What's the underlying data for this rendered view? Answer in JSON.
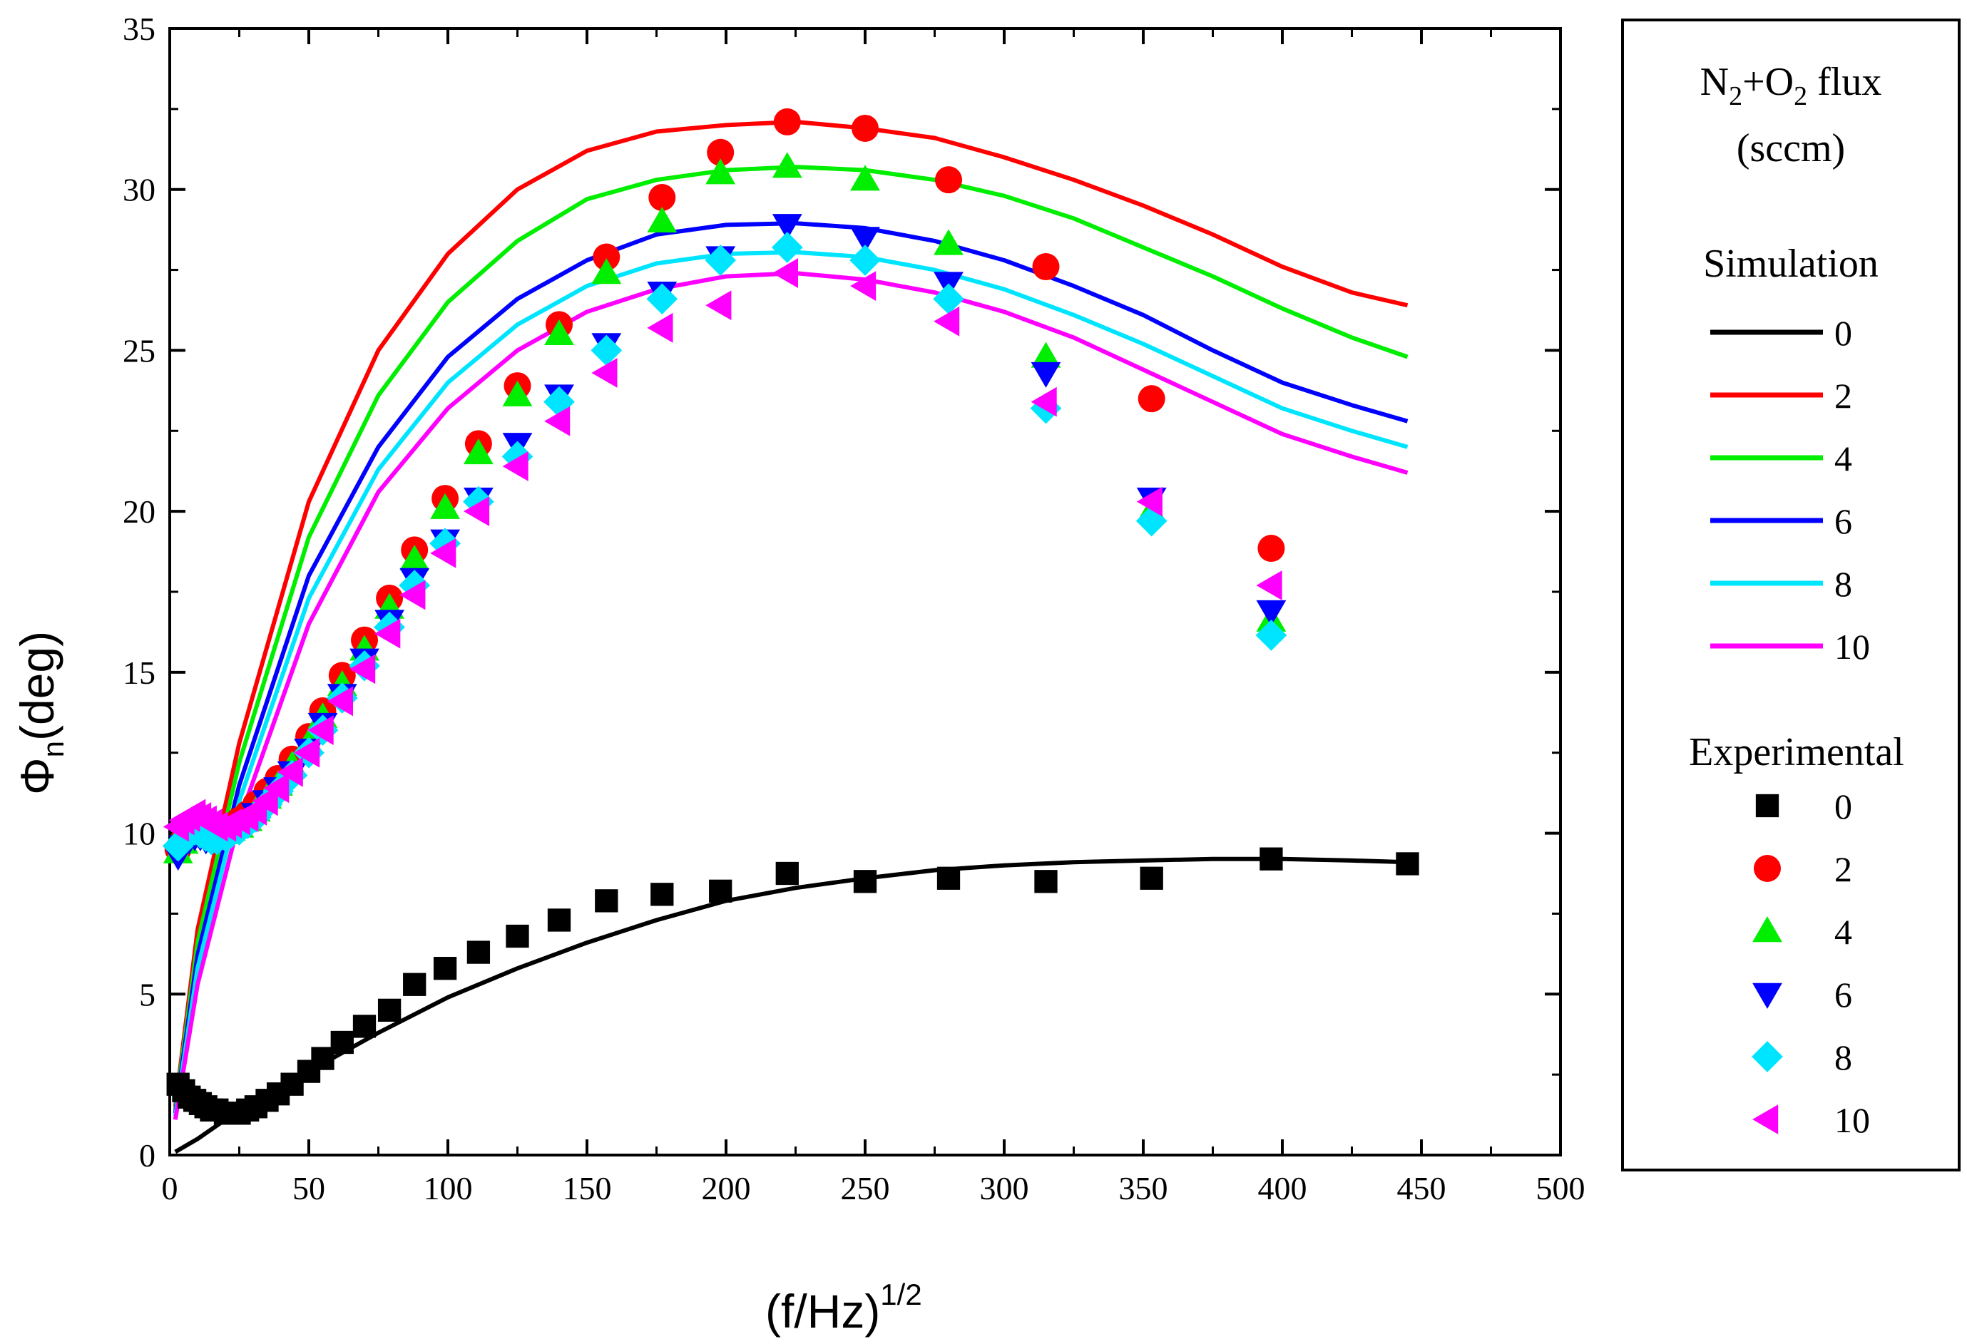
{
  "chart_data": {
    "type": "line",
    "title": "",
    "xlabel": {
      "main": "(f/Hz)",
      "sup": "1/2"
    },
    "ylabel": {
      "symbol": "Φ",
      "sub": "n",
      "unit": "(deg)"
    },
    "xlim": [
      0,
      500
    ],
    "ylim": [
      0,
      35
    ],
    "x_ticks": [
      0,
      50,
      100,
      150,
      200,
      250,
      300,
      350,
      400,
      450,
      500
    ],
    "y_ticks": [
      0,
      5,
      10,
      15,
      20,
      25,
      30,
      35
    ],
    "grid": false,
    "legend": {
      "position": "right",
      "title_line1": {
        "a": "N",
        "a_sub": "2",
        "plus": "+O",
        "b_sub": "2",
        "rest": " flux"
      },
      "title_line2": "(sccm)",
      "simulation_header": "Simulation",
      "experimental_header": "Experimental"
    },
    "simulation": [
      {
        "name": "0",
        "color": "#000000",
        "x": [
          2,
          10,
          25,
          50,
          75,
          100,
          125,
          150,
          175,
          200,
          225,
          250,
          275,
          300,
          325,
          350,
          375,
          400,
          425,
          445
        ],
        "y": [
          0.1,
          0.5,
          1.4,
          2.6,
          3.8,
          4.9,
          5.8,
          6.6,
          7.3,
          7.9,
          8.3,
          8.6,
          8.85,
          9.0,
          9.1,
          9.15,
          9.2,
          9.2,
          9.15,
          9.1
        ]
      },
      {
        "name": "2",
        "color": "#ff0000",
        "x": [
          2,
          10,
          25,
          50,
          75,
          100,
          125,
          150,
          175,
          200,
          225,
          250,
          275,
          300,
          325,
          350,
          375,
          400,
          425,
          445
        ],
        "y": [
          1.5,
          7.0,
          12.8,
          20.3,
          25.0,
          28.0,
          30.0,
          31.2,
          31.8,
          32.0,
          32.1,
          31.9,
          31.6,
          31.0,
          30.3,
          29.5,
          28.6,
          27.6,
          26.8,
          26.4
        ]
      },
      {
        "name": "4",
        "color": "#00ee00",
        "x": [
          2,
          10,
          25,
          50,
          75,
          100,
          125,
          150,
          175,
          200,
          225,
          250,
          275,
          300,
          325,
          350,
          375,
          400,
          425,
          445
        ],
        "y": [
          1.4,
          6.6,
          12.2,
          19.2,
          23.6,
          26.5,
          28.4,
          29.7,
          30.3,
          30.6,
          30.7,
          30.6,
          30.3,
          29.8,
          29.1,
          28.2,
          27.3,
          26.3,
          25.4,
          24.8
        ]
      },
      {
        "name": "6",
        "color": "#0000ff",
        "x": [
          2,
          10,
          25,
          50,
          75,
          100,
          125,
          150,
          175,
          200,
          225,
          250,
          275,
          300,
          325,
          350,
          375,
          400,
          425,
          445
        ],
        "y": [
          1.3,
          6.2,
          11.5,
          18.0,
          22.0,
          24.8,
          26.6,
          27.8,
          28.6,
          28.9,
          28.95,
          28.8,
          28.4,
          27.8,
          27.0,
          26.1,
          25.0,
          24.0,
          23.3,
          22.8
        ]
      },
      {
        "name": "8",
        "color": "#00e5ff",
        "x": [
          2,
          10,
          25,
          50,
          75,
          100,
          125,
          150,
          175,
          200,
          225,
          250,
          275,
          300,
          325,
          350,
          375,
          400,
          425,
          445
        ],
        "y": [
          1.2,
          5.8,
          11.0,
          17.3,
          21.3,
          24.0,
          25.8,
          27.0,
          27.7,
          28.0,
          28.05,
          27.9,
          27.5,
          26.9,
          26.1,
          25.2,
          24.2,
          23.2,
          22.5,
          22.0
        ]
      },
      {
        "name": "10",
        "color": "#ff00ff",
        "x": [
          2,
          10,
          25,
          50,
          75,
          100,
          125,
          150,
          175,
          200,
          225,
          250,
          275,
          300,
          325,
          350,
          375,
          400,
          425,
          445
        ],
        "y": [
          1.1,
          5.3,
          10.4,
          16.5,
          20.6,
          23.2,
          25.0,
          26.2,
          26.9,
          27.3,
          27.4,
          27.2,
          26.8,
          26.2,
          25.4,
          24.4,
          23.4,
          22.4,
          21.7,
          21.2
        ]
      }
    ],
    "experimental": [
      {
        "name": "0",
        "color": "#000000",
        "marker": "square",
        "x": [
          3,
          5,
          7,
          9,
          11,
          13,
          15,
          17,
          20,
          22,
          25,
          28,
          31,
          35,
          39,
          44,
          50,
          55,
          62,
          70,
          79,
          88,
          99,
          111,
          125,
          140,
          157,
          177,
          198,
          222,
          250,
          280,
          315,
          353,
          396,
          445
        ],
        "y": [
          2.2,
          2.0,
          1.8,
          1.7,
          1.6,
          1.5,
          1.4,
          1.4,
          1.3,
          1.3,
          1.3,
          1.4,
          1.5,
          1.7,
          1.9,
          2.2,
          2.6,
          3.0,
          3.5,
          4.0,
          4.5,
          5.3,
          5.8,
          6.3,
          6.8,
          7.3,
          7.9,
          8.1,
          8.2,
          8.75,
          8.5,
          8.6,
          8.5,
          8.6,
          9.2,
          9.05
        ]
      },
      {
        "name": "2",
        "color": "#ff0000",
        "marker": "circle",
        "x": [
          3,
          5,
          7,
          9,
          11,
          13,
          15,
          17,
          20,
          22,
          25,
          28,
          31,
          35,
          39,
          44,
          50,
          55,
          62,
          70,
          79,
          88,
          99,
          111,
          125,
          140,
          157,
          177,
          198,
          222,
          250,
          280,
          315,
          353,
          396
        ],
        "y": [
          9.5,
          9.8,
          10.0,
          10.2,
          10.2,
          10.1,
          10.0,
          10.0,
          10.1,
          10.2,
          10.4,
          10.6,
          10.9,
          11.3,
          11.7,
          12.3,
          13.0,
          13.8,
          14.9,
          16.0,
          17.3,
          18.8,
          20.4,
          22.1,
          23.9,
          25.8,
          27.9,
          29.75,
          31.15,
          32.1,
          31.9,
          30.3,
          27.6,
          23.5,
          18.85
        ]
      },
      {
        "name": "4",
        "color": "#00ee00",
        "marker": "triangle-up",
        "x": [
          3,
          5,
          7,
          9,
          11,
          13,
          15,
          17,
          20,
          22,
          25,
          28,
          31,
          35,
          39,
          44,
          50,
          55,
          62,
          70,
          79,
          88,
          99,
          111,
          125,
          140,
          157,
          177,
          198,
          222,
          250,
          280,
          315,
          353,
          396
        ],
        "y": [
          9.4,
          9.7,
          9.9,
          10.0,
          10.0,
          9.9,
          9.9,
          9.9,
          10.0,
          10.1,
          10.2,
          10.4,
          10.7,
          11.1,
          11.5,
          12.1,
          12.8,
          13.6,
          14.6,
          15.7,
          17.0,
          18.5,
          20.1,
          21.8,
          23.6,
          25.5,
          27.4,
          29.0,
          30.5,
          30.7,
          30.3,
          28.3,
          24.8,
          20.0,
          16.6
        ]
      },
      {
        "name": "6",
        "color": "#0000ff",
        "marker": "triangle-down",
        "x": [
          3,
          5,
          7,
          9,
          11,
          13,
          15,
          17,
          20,
          22,
          25,
          28,
          31,
          35,
          39,
          44,
          50,
          55,
          62,
          70,
          79,
          88,
          99,
          111,
          125,
          140,
          157,
          177,
          198,
          222,
          250,
          280,
          315,
          353,
          396
        ],
        "y": [
          9.3,
          9.6,
          9.8,
          9.9,
          9.9,
          9.8,
          9.8,
          9.8,
          9.9,
          10.0,
          10.1,
          10.3,
          10.6,
          11.0,
          11.4,
          11.9,
          12.6,
          13.4,
          14.3,
          15.4,
          16.6,
          17.9,
          19.1,
          20.4,
          22.1,
          23.6,
          25.2,
          26.8,
          27.9,
          28.9,
          28.5,
          27.1,
          24.3,
          20.4,
          16.9
        ]
      },
      {
        "name": "8",
        "color": "#00e5ff",
        "marker": "diamond",
        "x": [
          3,
          5,
          7,
          9,
          11,
          13,
          15,
          17,
          20,
          22,
          25,
          28,
          31,
          35,
          39,
          44,
          50,
          55,
          62,
          70,
          79,
          88,
          99,
          111,
          125,
          140,
          157,
          177,
          198,
          222,
          250,
          280,
          315,
          353,
          396
        ],
        "y": [
          9.6,
          9.8,
          10.0,
          10.1,
          10.0,
          9.9,
          9.8,
          9.8,
          9.9,
          10.0,
          10.1,
          10.3,
          10.5,
          10.9,
          11.3,
          11.8,
          12.5,
          13.2,
          14.2,
          15.2,
          16.4,
          17.7,
          19.0,
          20.3,
          21.7,
          23.4,
          25.0,
          26.6,
          27.8,
          28.2,
          27.8,
          26.6,
          23.2,
          19.7,
          16.15
        ]
      },
      {
        "name": "10",
        "color": "#ff00ff",
        "marker": "triangle-left",
        "x": [
          3,
          5,
          7,
          9,
          11,
          13,
          15,
          17,
          20,
          22,
          25,
          28,
          31,
          35,
          39,
          44,
          50,
          55,
          62,
          70,
          79,
          88,
          99,
          111,
          125,
          140,
          157,
          177,
          198,
          222,
          250,
          280,
          315,
          353,
          396
        ],
        "y": [
          10.2,
          10.4,
          10.5,
          10.6,
          10.5,
          10.4,
          10.3,
          10.2,
          10.2,
          10.3,
          10.4,
          10.5,
          10.7,
          11.0,
          11.4,
          11.9,
          12.5,
          13.2,
          14.1,
          15.1,
          16.2,
          17.4,
          18.7,
          20.0,
          21.4,
          22.8,
          24.3,
          25.7,
          26.4,
          27.4,
          27.0,
          25.9,
          23.4,
          20.3,
          17.7
        ]
      }
    ]
  }
}
